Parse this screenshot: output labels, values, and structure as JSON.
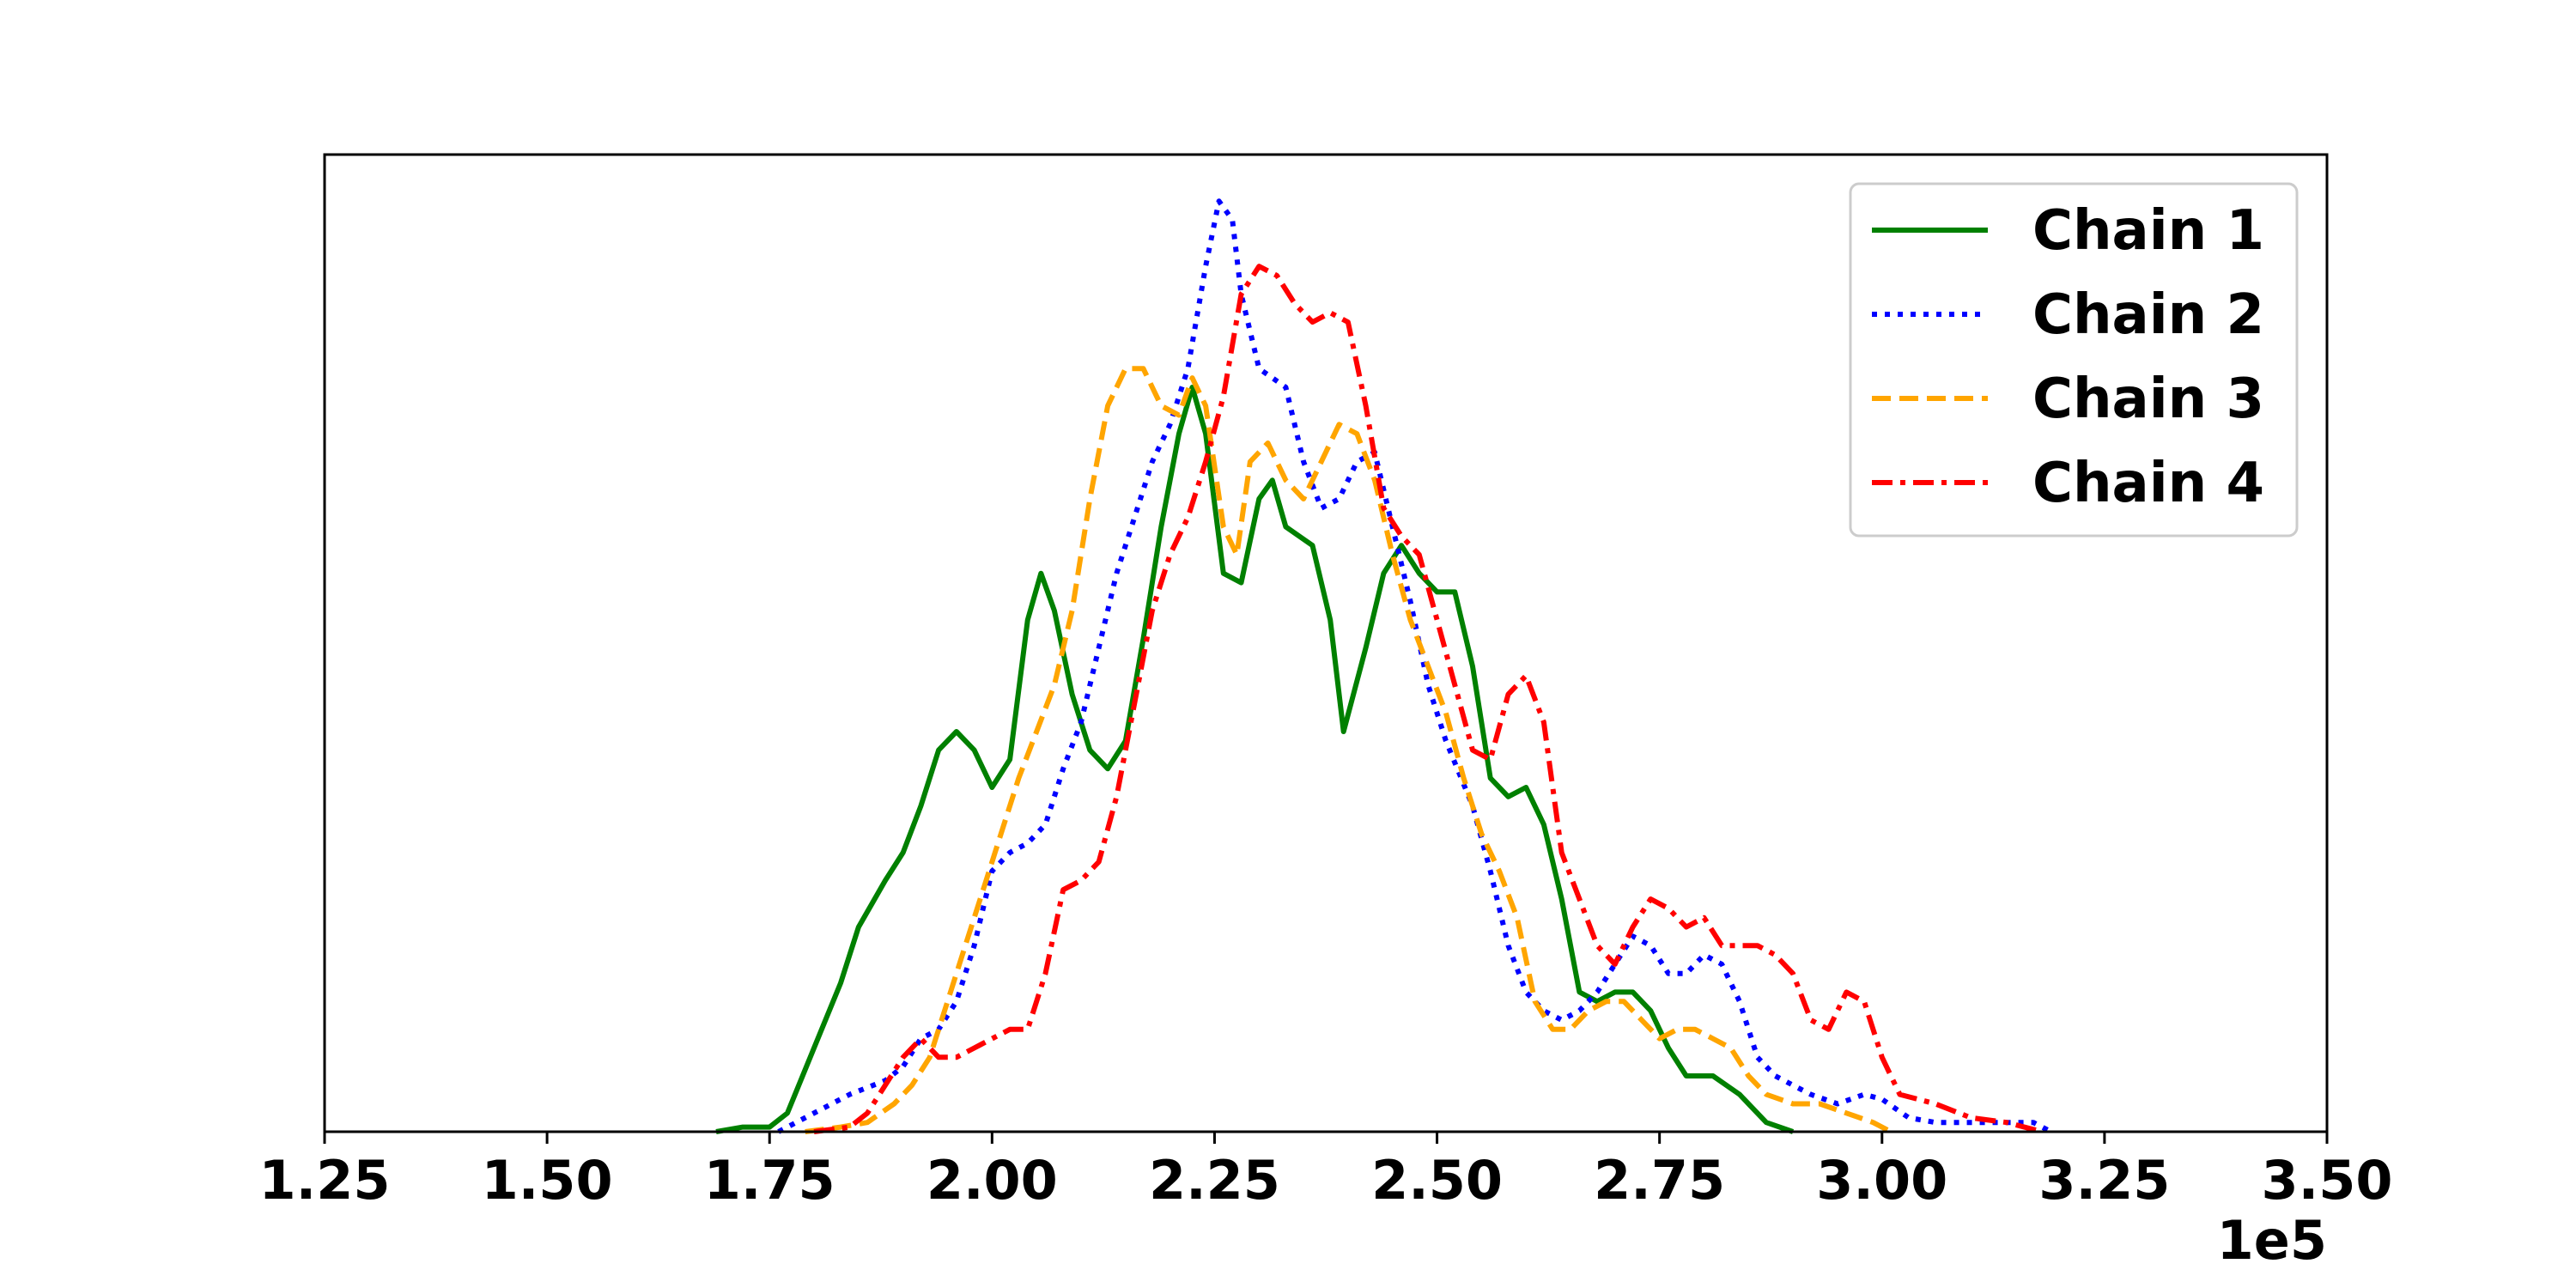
{
  "chart_data": {
    "type": "line",
    "title": "",
    "xlabel": "",
    "ylabel": "",
    "x_offset_label": "1e5",
    "xlim": [
      1.25,
      3.5
    ],
    "ylim": [
      0,
      1.05
    ],
    "x_ticks": [
      1.25,
      1.5,
      1.75,
      2.0,
      2.25,
      2.5,
      2.75,
      3.0,
      3.25,
      3.5
    ],
    "x_tick_labels": [
      "1.25",
      "1.50",
      "1.75",
      "2.00",
      "2.25",
      "2.50",
      "2.75",
      "3.00",
      "3.25",
      "3.50"
    ],
    "y_ticks_visible": false,
    "grid": false,
    "legend_position": "top-right",
    "series": [
      {
        "name": "Chain 1",
        "color": "#008000",
        "line_style": "solid",
        "points": [
          [
            1.69,
            0.0
          ],
          [
            1.72,
            0.005
          ],
          [
            1.75,
            0.005
          ],
          [
            1.77,
            0.02
          ],
          [
            1.8,
            0.09
          ],
          [
            1.83,
            0.16
          ],
          [
            1.85,
            0.22
          ],
          [
            1.88,
            0.27
          ],
          [
            1.9,
            0.3
          ],
          [
            1.92,
            0.35
          ],
          [
            1.94,
            0.41
          ],
          [
            1.96,
            0.43
          ],
          [
            1.98,
            0.41
          ],
          [
            2.0,
            0.37
          ],
          [
            2.02,
            0.4
          ],
          [
            2.04,
            0.55
          ],
          [
            2.055,
            0.6
          ],
          [
            2.07,
            0.56
          ],
          [
            2.09,
            0.47
          ],
          [
            2.11,
            0.41
          ],
          [
            2.13,
            0.39
          ],
          [
            2.15,
            0.42
          ],
          [
            2.17,
            0.53
          ],
          [
            2.19,
            0.65
          ],
          [
            2.21,
            0.75
          ],
          [
            2.225,
            0.8
          ],
          [
            2.24,
            0.75
          ],
          [
            2.26,
            0.6
          ],
          [
            2.28,
            0.59
          ],
          [
            2.3,
            0.68
          ],
          [
            2.315,
            0.7
          ],
          [
            2.33,
            0.65
          ],
          [
            2.36,
            0.63
          ],
          [
            2.38,
            0.55
          ],
          [
            2.395,
            0.43
          ],
          [
            2.42,
            0.52
          ],
          [
            2.44,
            0.6
          ],
          [
            2.46,
            0.63
          ],
          [
            2.48,
            0.6
          ],
          [
            2.5,
            0.58
          ],
          [
            2.52,
            0.58
          ],
          [
            2.54,
            0.5
          ],
          [
            2.56,
            0.38
          ],
          [
            2.58,
            0.36
          ],
          [
            2.6,
            0.37
          ],
          [
            2.62,
            0.33
          ],
          [
            2.64,
            0.25
          ],
          [
            2.66,
            0.15
          ],
          [
            2.68,
            0.14
          ],
          [
            2.7,
            0.15
          ],
          [
            2.72,
            0.15
          ],
          [
            2.74,
            0.13
          ],
          [
            2.76,
            0.09
          ],
          [
            2.78,
            0.06
          ],
          [
            2.81,
            0.06
          ],
          [
            2.84,
            0.04
          ],
          [
            2.87,
            0.01
          ],
          [
            2.9,
            0.0
          ]
        ]
      },
      {
        "name": "Chain 2",
        "color": "#0000ff",
        "line_style": "dotted",
        "points": [
          [
            1.76,
            0.0
          ],
          [
            1.8,
            0.02
          ],
          [
            1.84,
            0.04
          ],
          [
            1.88,
            0.055
          ],
          [
            1.9,
            0.07
          ],
          [
            1.92,
            0.1
          ],
          [
            1.94,
            0.11
          ],
          [
            1.96,
            0.14
          ],
          [
            1.98,
            0.2
          ],
          [
            2.0,
            0.28
          ],
          [
            2.02,
            0.3
          ],
          [
            2.04,
            0.31
          ],
          [
            2.06,
            0.33
          ],
          [
            2.08,
            0.39
          ],
          [
            2.1,
            0.44
          ],
          [
            2.12,
            0.52
          ],
          [
            2.14,
            0.6
          ],
          [
            2.16,
            0.66
          ],
          [
            2.18,
            0.72
          ],
          [
            2.2,
            0.76
          ],
          [
            2.22,
            0.82
          ],
          [
            2.24,
            0.93
          ],
          [
            2.255,
            1.0
          ],
          [
            2.27,
            0.98
          ],
          [
            2.28,
            0.9
          ],
          [
            2.3,
            0.82
          ],
          [
            2.33,
            0.8
          ],
          [
            2.35,
            0.72
          ],
          [
            2.37,
            0.67
          ],
          [
            2.39,
            0.68
          ],
          [
            2.41,
            0.72
          ],
          [
            2.43,
            0.73
          ],
          [
            2.45,
            0.65
          ],
          [
            2.47,
            0.57
          ],
          [
            2.49,
            0.48
          ],
          [
            2.51,
            0.42
          ],
          [
            2.54,
            0.35
          ],
          [
            2.56,
            0.28
          ],
          [
            2.58,
            0.2
          ],
          [
            2.6,
            0.15
          ],
          [
            2.62,
            0.13
          ],
          [
            2.64,
            0.12
          ],
          [
            2.66,
            0.13
          ],
          [
            2.68,
            0.15
          ],
          [
            2.7,
            0.18
          ],
          [
            2.72,
            0.21
          ],
          [
            2.74,
            0.2
          ],
          [
            2.76,
            0.17
          ],
          [
            2.78,
            0.17
          ],
          [
            2.8,
            0.19
          ],
          [
            2.82,
            0.18
          ],
          [
            2.84,
            0.14
          ],
          [
            2.86,
            0.08
          ],
          [
            2.88,
            0.06
          ],
          [
            2.9,
            0.05
          ],
          [
            2.92,
            0.04
          ],
          [
            2.95,
            0.03
          ],
          [
            2.98,
            0.04
          ],
          [
            3.0,
            0.035
          ],
          [
            3.03,
            0.015
          ],
          [
            3.06,
            0.01
          ],
          [
            3.1,
            0.01
          ],
          [
            3.14,
            0.01
          ],
          [
            3.17,
            0.01
          ],
          [
            3.19,
            0.0
          ]
        ]
      },
      {
        "name": "Chain 3",
        "color": "#ffa500",
        "line_style": "dashed",
        "points": [
          [
            1.79,
            0.0
          ],
          [
            1.83,
            0.005
          ],
          [
            1.86,
            0.01
          ],
          [
            1.89,
            0.03
          ],
          [
            1.91,
            0.05
          ],
          [
            1.93,
            0.08
          ],
          [
            1.95,
            0.14
          ],
          [
            1.97,
            0.2
          ],
          [
            1.99,
            0.26
          ],
          [
            2.01,
            0.32
          ],
          [
            2.03,
            0.38
          ],
          [
            2.05,
            0.43
          ],
          [
            2.07,
            0.48
          ],
          [
            2.09,
            0.56
          ],
          [
            2.11,
            0.68
          ],
          [
            2.13,
            0.78
          ],
          [
            2.15,
            0.82
          ],
          [
            2.17,
            0.82
          ],
          [
            2.19,
            0.78
          ],
          [
            2.21,
            0.77
          ],
          [
            2.225,
            0.81
          ],
          [
            2.24,
            0.78
          ],
          [
            2.26,
            0.65
          ],
          [
            2.275,
            0.62
          ],
          [
            2.29,
            0.72
          ],
          [
            2.31,
            0.74
          ],
          [
            2.33,
            0.7
          ],
          [
            2.35,
            0.68
          ],
          [
            2.37,
            0.72
          ],
          [
            2.39,
            0.76
          ],
          [
            2.41,
            0.75
          ],
          [
            2.43,
            0.7
          ],
          [
            2.45,
            0.62
          ],
          [
            2.47,
            0.55
          ],
          [
            2.49,
            0.5
          ],
          [
            2.51,
            0.45
          ],
          [
            2.53,
            0.38
          ],
          [
            2.55,
            0.32
          ],
          [
            2.57,
            0.28
          ],
          [
            2.59,
            0.23
          ],
          [
            2.61,
            0.14
          ],
          [
            2.63,
            0.11
          ],
          [
            2.65,
            0.11
          ],
          [
            2.67,
            0.13
          ],
          [
            2.69,
            0.14
          ],
          [
            2.71,
            0.14
          ],
          [
            2.73,
            0.12
          ],
          [
            2.75,
            0.1
          ],
          [
            2.77,
            0.11
          ],
          [
            2.79,
            0.11
          ],
          [
            2.81,
            0.1
          ],
          [
            2.83,
            0.09
          ],
          [
            2.85,
            0.06
          ],
          [
            2.87,
            0.04
          ],
          [
            2.9,
            0.03
          ],
          [
            2.93,
            0.03
          ],
          [
            2.96,
            0.02
          ],
          [
            2.99,
            0.01
          ],
          [
            3.01,
            0.0
          ]
        ]
      },
      {
        "name": "Chain 4",
        "color": "#ff0000",
        "line_style": "dashdot",
        "points": [
          [
            1.8,
            0.0
          ],
          [
            1.84,
            0.005
          ],
          [
            1.86,
            0.02
          ],
          [
            1.88,
            0.05
          ],
          [
            1.9,
            0.08
          ],
          [
            1.92,
            0.1
          ],
          [
            1.94,
            0.08
          ],
          [
            1.96,
            0.08
          ],
          [
            1.98,
            0.09
          ],
          [
            2.0,
            0.1
          ],
          [
            2.02,
            0.11
          ],
          [
            2.04,
            0.11
          ],
          [
            2.06,
            0.17
          ],
          [
            2.08,
            0.26
          ],
          [
            2.1,
            0.27
          ],
          [
            2.12,
            0.29
          ],
          [
            2.14,
            0.36
          ],
          [
            2.16,
            0.46
          ],
          [
            2.18,
            0.56
          ],
          [
            2.2,
            0.62
          ],
          [
            2.22,
            0.66
          ],
          [
            2.24,
            0.72
          ],
          [
            2.26,
            0.79
          ],
          [
            2.28,
            0.9
          ],
          [
            2.3,
            0.93
          ],
          [
            2.32,
            0.92
          ],
          [
            2.34,
            0.89
          ],
          [
            2.36,
            0.87
          ],
          [
            2.38,
            0.88
          ],
          [
            2.4,
            0.87
          ],
          [
            2.42,
            0.78
          ],
          [
            2.44,
            0.67
          ],
          [
            2.46,
            0.64
          ],
          [
            2.48,
            0.62
          ],
          [
            2.5,
            0.55
          ],
          [
            2.52,
            0.48
          ],
          [
            2.54,
            0.41
          ],
          [
            2.56,
            0.4
          ],
          [
            2.58,
            0.47
          ],
          [
            2.6,
            0.49
          ],
          [
            2.62,
            0.44
          ],
          [
            2.64,
            0.3
          ],
          [
            2.66,
            0.25
          ],
          [
            2.68,
            0.2
          ],
          [
            2.7,
            0.18
          ],
          [
            2.72,
            0.22
          ],
          [
            2.74,
            0.25
          ],
          [
            2.76,
            0.24
          ],
          [
            2.78,
            0.22
          ],
          [
            2.8,
            0.23
          ],
          [
            2.82,
            0.2
          ],
          [
            2.84,
            0.2
          ],
          [
            2.86,
            0.2
          ],
          [
            2.88,
            0.19
          ],
          [
            2.9,
            0.17
          ],
          [
            2.92,
            0.12
          ],
          [
            2.94,
            0.11
          ],
          [
            2.96,
            0.15
          ],
          [
            2.98,
            0.14
          ],
          [
            3.0,
            0.08
          ],
          [
            3.02,
            0.04
          ],
          [
            3.06,
            0.03
          ],
          [
            3.1,
            0.015
          ],
          [
            3.14,
            0.01
          ],
          [
            3.18,
            0.0
          ]
        ]
      }
    ]
  }
}
